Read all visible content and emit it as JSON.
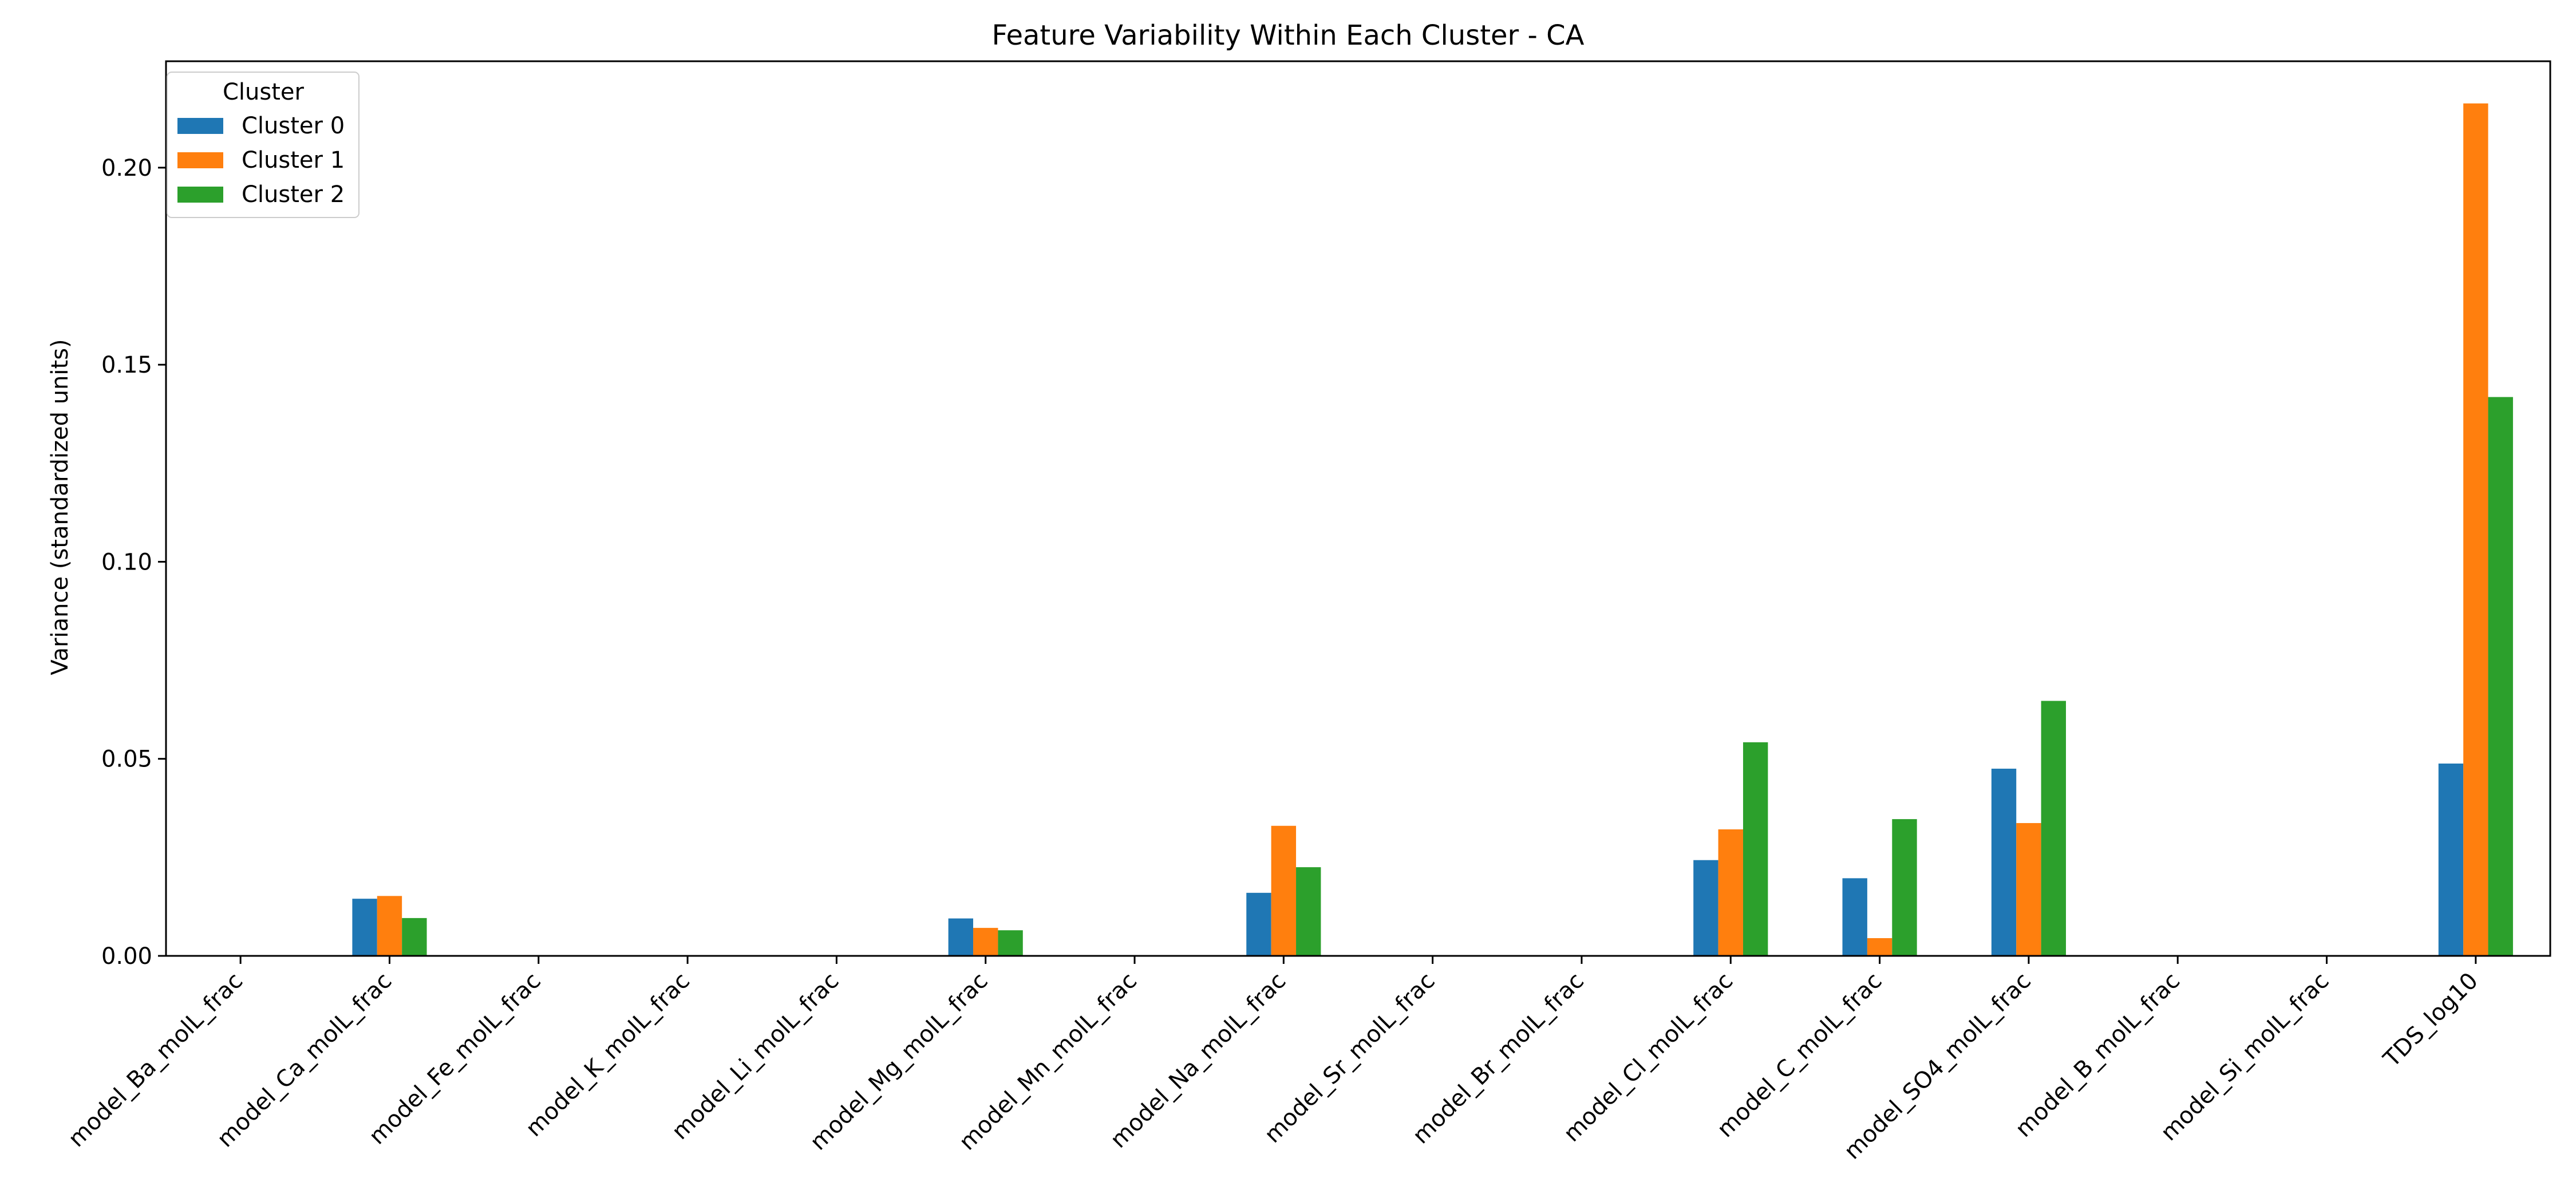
{
  "chart_data": {
    "type": "bar",
    "title": "Feature Variability Within Each Cluster - CA",
    "xlabel": "",
    "ylabel": "Variance (standardized units)",
    "ylim": [
      0,
      0.227
    ],
    "yticks": [
      0.0,
      0.05,
      0.1,
      0.15,
      0.2
    ],
    "ytick_labels": [
      "0.00",
      "0.05",
      "0.10",
      "0.15",
      "0.20"
    ],
    "grid": false,
    "legend": {
      "title": "Cluster",
      "placement": "top-left"
    },
    "categories": [
      "model_Ba_molL_frac",
      "model_Ca_molL_frac",
      "model_Fe_molL_frac",
      "model_K_molL_frac",
      "model_Li_molL_frac",
      "model_Mg_molL_frac",
      "model_Mn_molL_frac",
      "model_Na_molL_frac",
      "model_Sr_molL_frac",
      "model_Br_molL_frac",
      "model_Cl_molL_frac",
      "model_C_molL_frac",
      "model_SO4_molL_frac",
      "model_B_molL_frac",
      "model_Si_molL_frac",
      "TDS_log10"
    ],
    "series": [
      {
        "name": "Cluster 0",
        "color": "#1f77b4",
        "values": [
          0,
          0.0145,
          0,
          0,
          0,
          0.0095,
          0,
          0.016,
          0,
          0,
          0.0243,
          0.0197,
          0.0475,
          0,
          0,
          0.0488
        ]
      },
      {
        "name": "Cluster 1",
        "color": "#ff7f0e",
        "values": [
          0,
          0.0152,
          0,
          0,
          0,
          0.0071,
          0,
          0.033,
          0,
          0,
          0.0321,
          0.0045,
          0.0337,
          0,
          0,
          0.2163
        ]
      },
      {
        "name": "Cluster 2",
        "color": "#2ca02c",
        "values": [
          0,
          0.0096,
          0,
          0,
          0,
          0.0065,
          0,
          0.0225,
          0,
          0,
          0.0542,
          0.0347,
          0.0647,
          0,
          0,
          0.1418
        ]
      }
    ]
  }
}
